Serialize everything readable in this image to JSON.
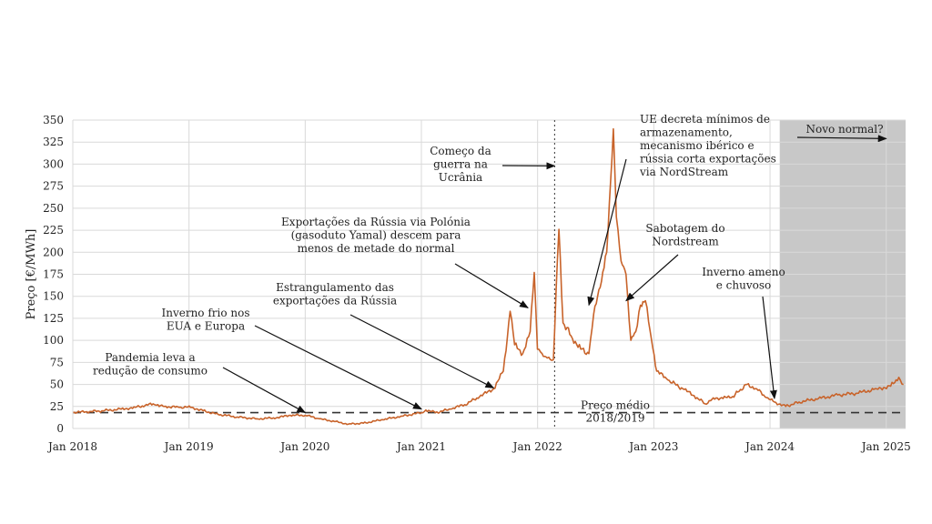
{
  "chart_data": {
    "type": "line",
    "title": "",
    "xlabel": "",
    "ylabel": "Preço [€/MWh]",
    "ylim": [
      0,
      350
    ],
    "yticks": [
      0,
      25,
      50,
      75,
      100,
      125,
      150,
      175,
      200,
      225,
      250,
      275,
      300,
      325,
      350
    ],
    "xlim": [
      "2018-01",
      "2025-03"
    ],
    "xticks": [
      {
        "x": "2018-01",
        "label": "Jan 2018"
      },
      {
        "x": "2019-01",
        "label": "Jan 2019"
      },
      {
        "x": "2020-01",
        "label": "Jan 2020"
      },
      {
        "x": "2021-01",
        "label": "Jan 2021"
      },
      {
        "x": "2022-01",
        "label": "Jan 2022"
      },
      {
        "x": "2023-01",
        "label": "Jan 2023"
      },
      {
        "x": "2024-01",
        "label": "Jan 2024"
      },
      {
        "x": "2025-01",
        "label": "Jan 2025"
      }
    ],
    "grid": true,
    "line_color": "#c8632a",
    "series": [
      {
        "name": "",
        "points": [
          [
            "2018-01-01",
            18
          ],
          [
            "2018-02-15",
            19
          ],
          [
            "2018-04-01",
            20
          ],
          [
            "2018-06-01",
            22
          ],
          [
            "2018-07-15",
            24
          ],
          [
            "2018-08-15",
            26
          ],
          [
            "2018-09-10",
            28
          ],
          [
            "2018-09-25",
            27
          ],
          [
            "2018-10-15",
            25
          ],
          [
            "2018-12-01",
            24
          ],
          [
            "2019-01-10",
            24
          ],
          [
            "2019-02-15",
            20
          ],
          [
            "2019-04-01",
            16
          ],
          [
            "2019-06-01",
            13
          ],
          [
            "2019-08-01",
            11
          ],
          [
            "2019-10-01",
            12
          ],
          [
            "2019-11-15",
            15
          ],
          [
            "2020-01-01",
            15
          ],
          [
            "2020-02-15",
            11
          ],
          [
            "2020-04-01",
            8
          ],
          [
            "2020-05-15",
            5
          ],
          [
            "2020-07-01",
            6
          ],
          [
            "2020-09-01",
            10
          ],
          [
            "2020-11-01",
            14
          ],
          [
            "2021-01-01",
            18
          ],
          [
            "2021-01-15",
            21
          ],
          [
            "2021-02-15",
            18
          ],
          [
            "2021-04-01",
            22
          ],
          [
            "2021-05-15",
            27
          ],
          [
            "2021-07-01",
            36
          ],
          [
            "2021-08-15",
            45
          ],
          [
            "2021-09-15",
            65
          ],
          [
            "2021-10-06",
            133
          ],
          [
            "2021-10-20",
            95
          ],
          [
            "2021-11-15",
            85
          ],
          [
            "2021-12-08",
            110
          ],
          [
            "2021-12-21",
            177
          ],
          [
            "2021-12-31",
            90
          ],
          [
            "2022-01-15",
            85
          ],
          [
            "2022-02-01",
            80
          ],
          [
            "2022-02-20",
            78
          ],
          [
            "2022-03-07",
            226
          ],
          [
            "2022-03-20",
            120
          ],
          [
            "2022-04-15",
            105
          ],
          [
            "2022-05-15",
            90
          ],
          [
            "2022-06-10",
            85
          ],
          [
            "2022-06-25",
            130
          ],
          [
            "2022-07-15",
            160
          ],
          [
            "2022-08-05",
            200
          ],
          [
            "2022-08-26",
            340
          ],
          [
            "2022-09-05",
            240
          ],
          [
            "2022-09-20",
            190
          ],
          [
            "2022-10-05",
            175
          ],
          [
            "2022-10-20",
            100
          ],
          [
            "2022-11-05",
            110
          ],
          [
            "2022-11-20",
            140
          ],
          [
            "2022-12-05",
            145
          ],
          [
            "2022-12-20",
            110
          ],
          [
            "2023-01-10",
            65
          ],
          [
            "2023-02-15",
            55
          ],
          [
            "2023-04-01",
            45
          ],
          [
            "2023-05-15",
            35
          ],
          [
            "2023-06-10",
            28
          ],
          [
            "2023-07-01",
            33
          ],
          [
            "2023-08-01",
            35
          ],
          [
            "2023-09-01",
            35
          ],
          [
            "2023-10-20",
            50
          ],
          [
            "2023-11-20",
            45
          ],
          [
            "2023-12-20",
            35
          ],
          [
            "2024-01-15",
            30
          ],
          [
            "2024-02-20",
            25
          ],
          [
            "2024-04-01",
            30
          ],
          [
            "2024-06-01",
            34
          ],
          [
            "2024-08-01",
            38
          ],
          [
            "2024-10-01",
            40
          ],
          [
            "2024-12-01",
            45
          ],
          [
            "2025-01-15",
            48
          ],
          [
            "2025-02-10",
            58
          ],
          [
            "2025-02-25",
            50
          ]
        ]
      }
    ],
    "reference_line": {
      "y": 18,
      "label": "Preço médio 2018/2019"
    },
    "war_start": {
      "x": "2022-02-24"
    },
    "shaded_region": {
      "from": "2024-02-01",
      "to": "2025-03-01",
      "color": "#c8c8c8"
    },
    "annotations": [
      {
        "text": "Pandemia leva a redução de consumo",
        "target": [
          "2020-01-01",
          18
        ]
      },
      {
        "text": "Inverno frio nos EUA e Europa",
        "target": [
          "2021-01-01",
          22
        ]
      },
      {
        "text": "Estrangulamento das exportações da Rússia",
        "target": [
          "2021-08-15",
          46
        ]
      },
      {
        "text": "Exportações da Rússia via Polónia (gasoduto Yamal) descem para menos de metade do normal",
        "target": [
          "2021-12-01",
          137
        ]
      },
      {
        "text": "Começo da guerra na Ucrânia",
        "target": [
          "2022-02-24",
          298
        ]
      },
      {
        "text": "UE decreta mínimos de armazenamento, mecanismo ibérico e rússia corta exportações via NordStream",
        "target": [
          "2022-06-10",
          140
        ]
      },
      {
        "text": "Sabotagem do Nordstream",
        "target": [
          "2022-10-05",
          145
        ]
      },
      {
        "text": "Inverno ameno e chuvoso",
        "target": [
          "2024-01-15",
          34
        ]
      },
      {
        "text": "Novo normal?",
        "target": [
          "2025-01-01",
          329
        ]
      }
    ]
  }
}
